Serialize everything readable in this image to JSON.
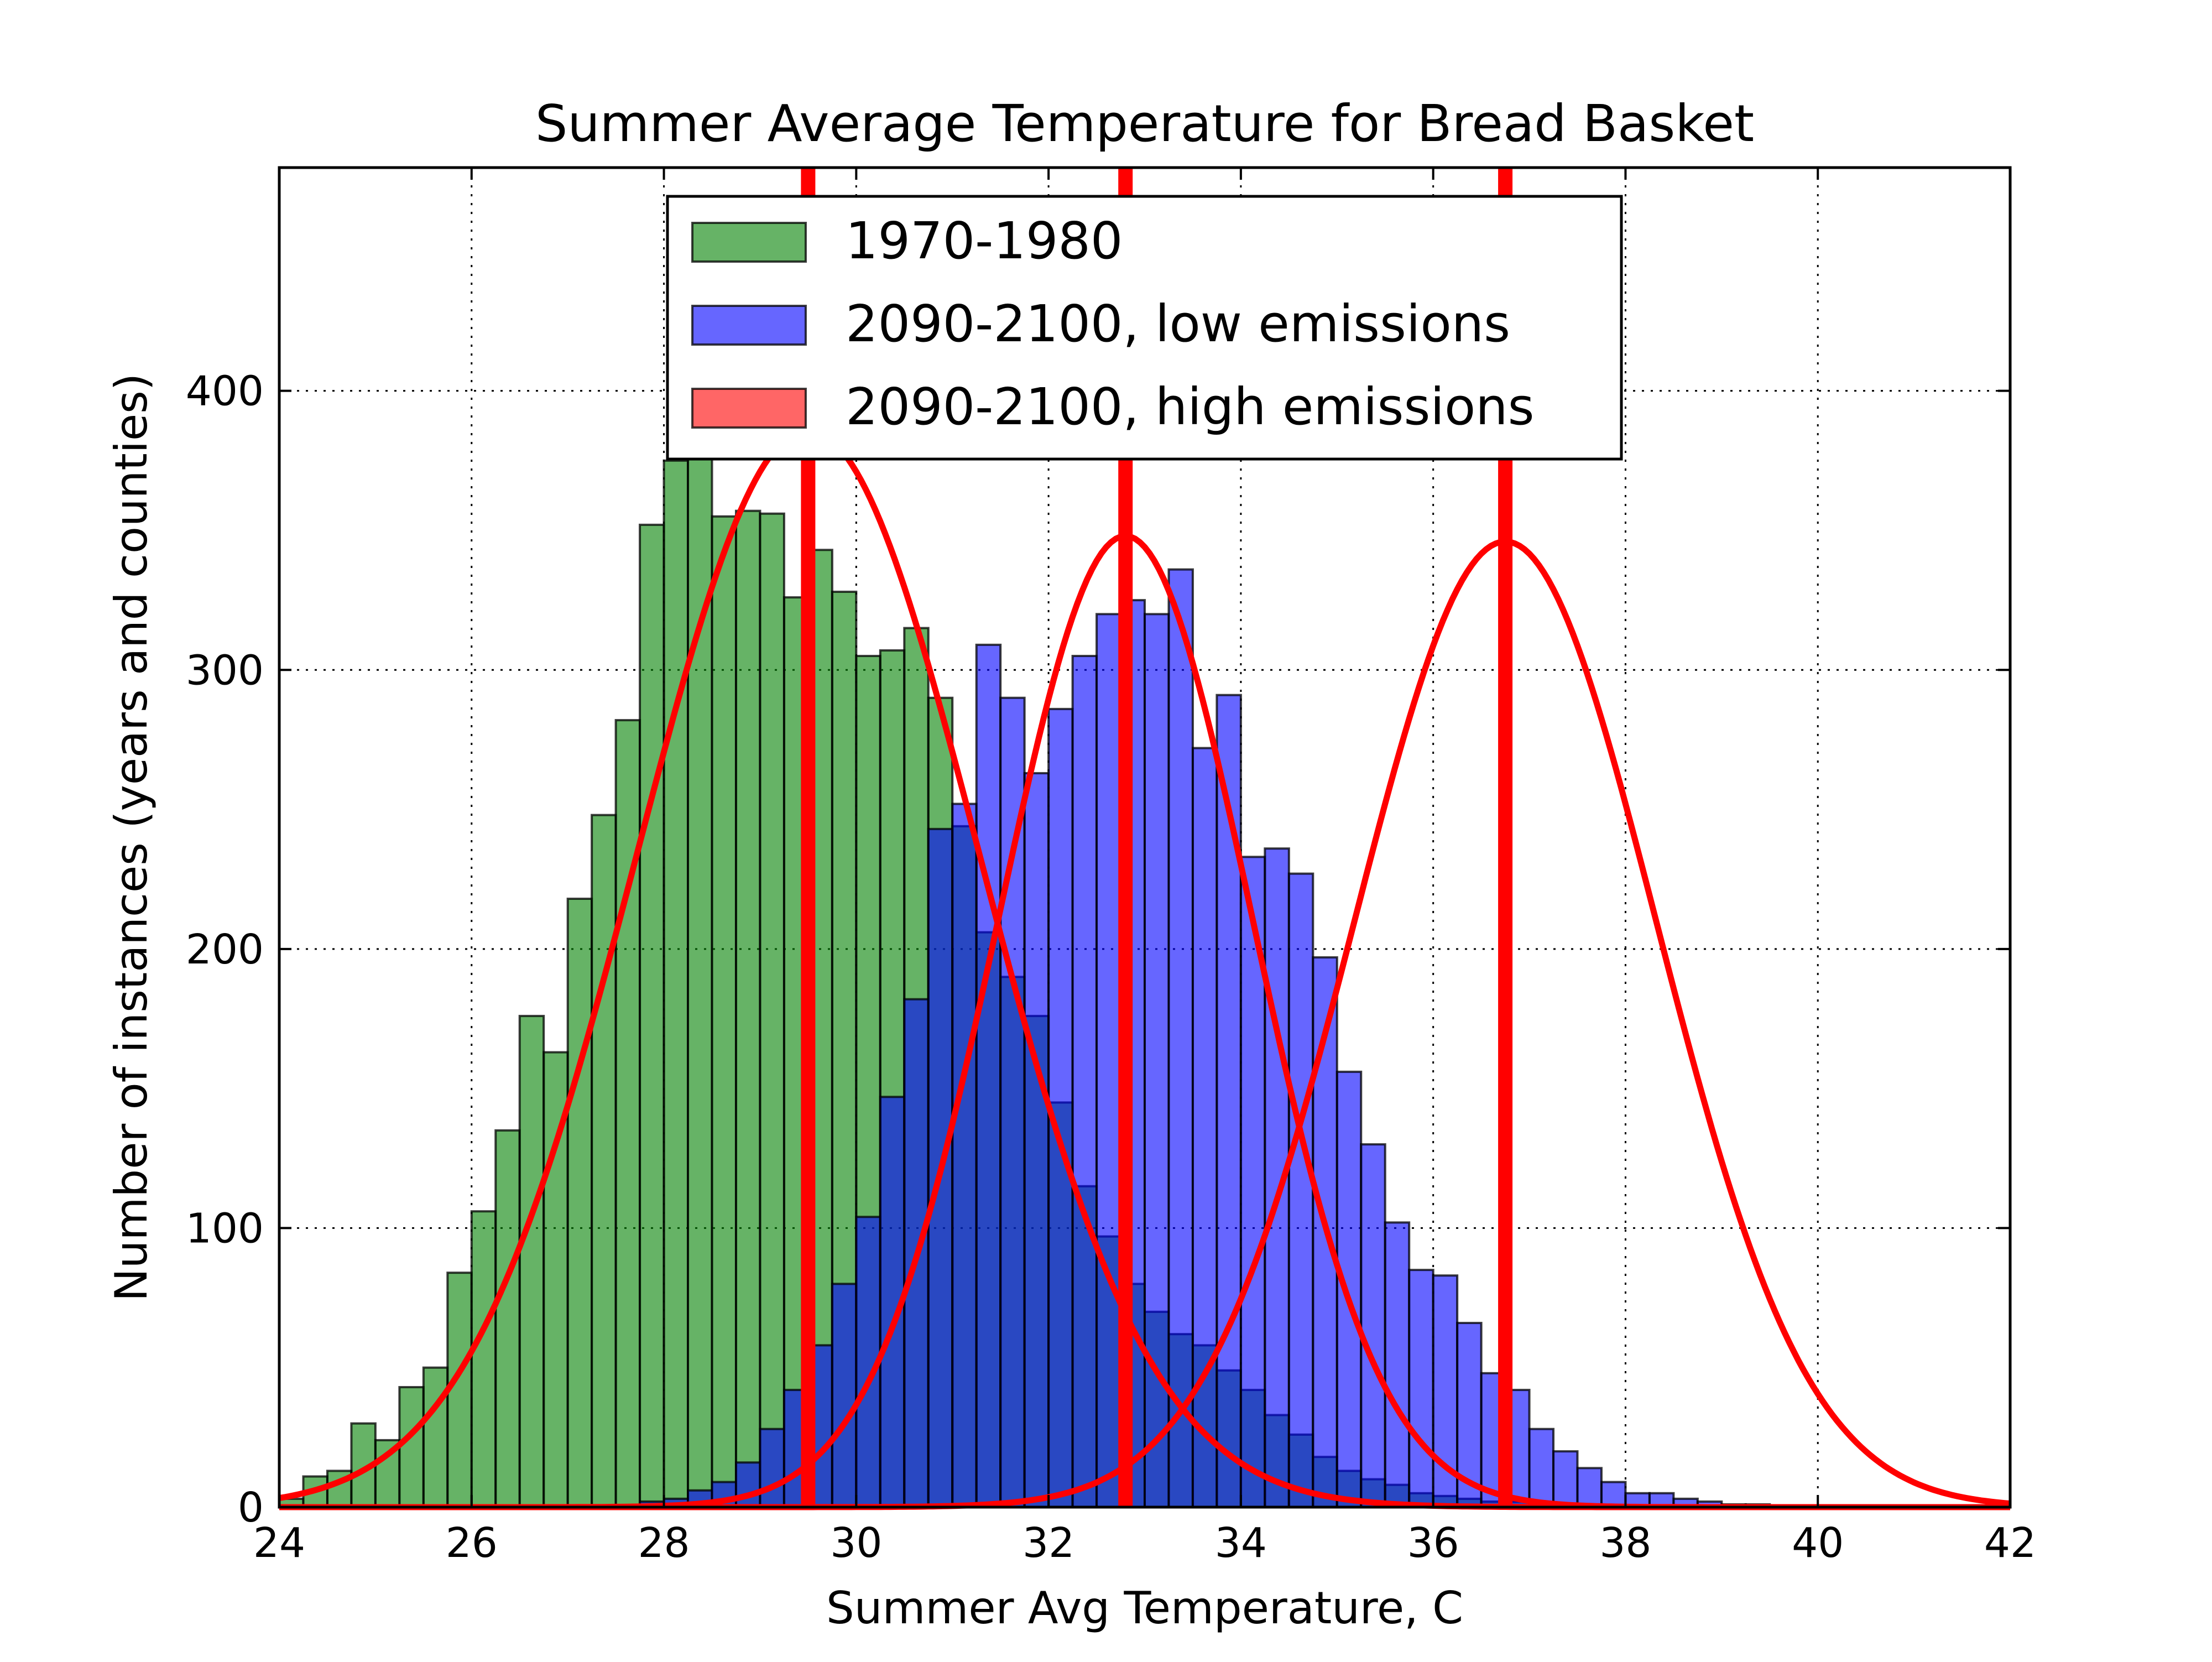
{
  "chart_data": {
    "type": "bar",
    "title": "Summer Average Temperature for Bread Basket",
    "xlabel": "Summer Avg Temperature, C",
    "ylabel": "Number of instances (years and counties)",
    "xlim": [
      24,
      42
    ],
    "ylim": [
      0,
      480
    ],
    "x_ticks": [
      24,
      26,
      28,
      30,
      32,
      34,
      36,
      38,
      40,
      42
    ],
    "y_ticks": [
      0,
      100,
      200,
      300,
      400
    ],
    "grid": true,
    "legend_position": "top-center",
    "bin_start": 24.0,
    "bin_width": 0.25,
    "series": [
      {
        "name": "1970-1980",
        "color": "#008000",
        "opacity": 0.6,
        "fit_mean": 29.5,
        "fit_peak": 386,
        "fit_sd": 1.78,
        "values": [
          3,
          11,
          13,
          30,
          24,
          43,
          50,
          84,
          106,
          135,
          176,
          163,
          218,
          248,
          282,
          352,
          375,
          378,
          355,
          357,
          356,
          326,
          343,
          328,
          305,
          307,
          315,
          290,
          244,
          206,
          190,
          176,
          145,
          115,
          97,
          80,
          70,
          62,
          58,
          49,
          42,
          33,
          26,
          18,
          13,
          10,
          8,
          5,
          4,
          3,
          2,
          2,
          1,
          1,
          1,
          0,
          0,
          0,
          0,
          0,
          0,
          0,
          0,
          0,
          0,
          0,
          0,
          0,
          0,
          0,
          0,
          0
        ]
      },
      {
        "name": "2090-2100, low emissions",
        "color": "#0000ff",
        "opacity": 0.6,
        "fit_mean": 32.8,
        "fit_peak": 348,
        "fit_sd": 1.32,
        "values": [
          0,
          0,
          0,
          0,
          0,
          0,
          0,
          0,
          0,
          0,
          0,
          0,
          0,
          0,
          0,
          2,
          3,
          6,
          9,
          16,
          28,
          42,
          58,
          80,
          104,
          147,
          182,
          243,
          252,
          309,
          290,
          263,
          286,
          305,
          320,
          325,
          320,
          336,
          272,
          291,
          233,
          236,
          227,
          197,
          156,
          130,
          102,
          85,
          83,
          66,
          48,
          42,
          28,
          20,
          14,
          9,
          5,
          5,
          3,
          2,
          1,
          1,
          0,
          0,
          0,
          0,
          0,
          0,
          0,
          0,
          0,
          0
        ]
      },
      {
        "name": "2090-2100, high emissions",
        "color": "#ff0000",
        "opacity": 0.6,
        "fit_mean": 36.75,
        "fit_peak": 346,
        "fit_sd": 1.57,
        "values": [
          0,
          0,
          0,
          0,
          0,
          0,
          0,
          0,
          0,
          0,
          0,
          0,
          0,
          0,
          0,
          0,
          0,
          0,
          0,
          0,
          0,
          0,
          0,
          0,
          0,
          0,
          0,
          0,
          0,
          0,
          0,
          0,
          0,
          0,
          0,
          0,
          0,
          0,
          0,
          0,
          0,
          0,
          0,
          0,
          0,
          0,
          0,
          0,
          0,
          0,
          0,
          0,
          0,
          0,
          0,
          0,
          0,
          0,
          0,
          0,
          0,
          0,
          0,
          0,
          0,
          0,
          0,
          0,
          0,
          0,
          0,
          0
        ]
      }
    ],
    "mean_lines": [
      29.5,
      32.8,
      36.75
    ],
    "fit_color": "#ff0000"
  }
}
